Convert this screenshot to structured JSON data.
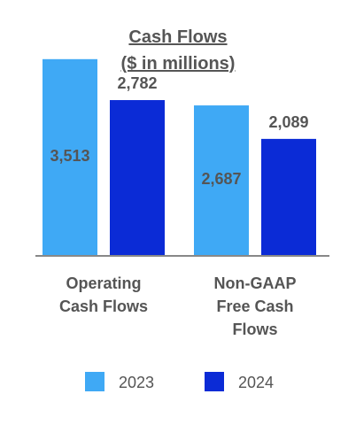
{
  "chart_data": {
    "type": "bar",
    "title": "Cash Flows",
    "subtitle": "($ in millions)",
    "categories": [
      "Operating Cash Flows",
      "Non-GAAP Free Cash Flows"
    ],
    "category_lines": [
      [
        "Operating",
        "Cash Flows"
      ],
      [
        "Non-GAAP",
        "Free Cash",
        "Flows"
      ]
    ],
    "series": [
      {
        "name": "2023",
        "values": [
          3513,
          2687
        ],
        "labels": [
          "3,513",
          "2,687"
        ],
        "color": "#3fa9f5"
      },
      {
        "name": "2024",
        "values": [
          2782,
          2089
        ],
        "labels": [
          "2,782",
          "2,089"
        ],
        "color": "#0b2bd6"
      }
    ],
    "ylim": [
      0,
      4000
    ],
    "grid": false,
    "legend_position": "bottom"
  }
}
